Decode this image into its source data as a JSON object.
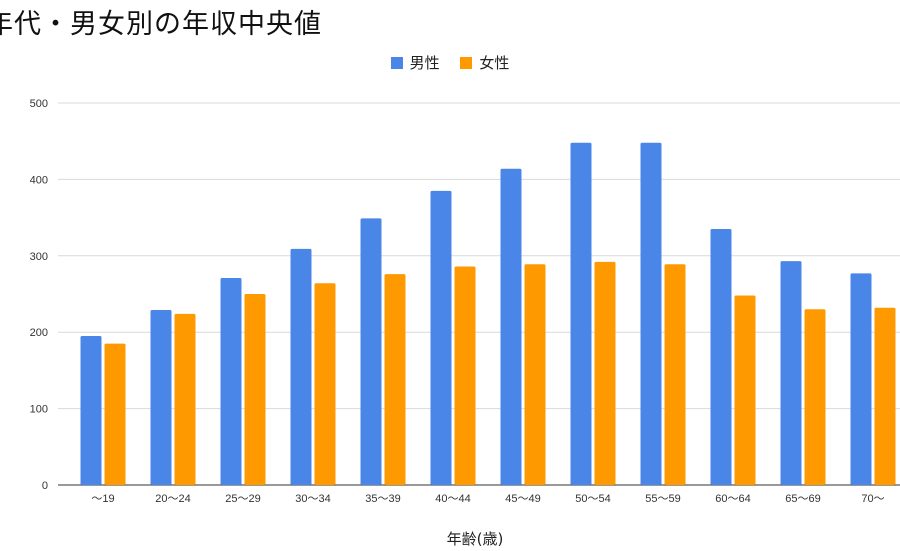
{
  "chart_data": {
    "type": "bar",
    "title": "年代・男女別の年収中央値",
    "xlabel": "年齢(歳)",
    "ylabel": "",
    "ylim": [
      0,
      500
    ],
    "yticks": [
      0,
      100,
      200,
      300,
      400,
      500
    ],
    "grid": true,
    "legend_position": "top-center",
    "categories": [
      "～19",
      "20～24",
      "25～29",
      "30～34",
      "35～39",
      "40～44",
      "45～49",
      "50～54",
      "55～59",
      "60～64",
      "65～69",
      "70～"
    ],
    "series": [
      {
        "name": "男性",
        "color": "#4a86e8",
        "values": [
          195,
          229,
          271,
          309,
          349,
          385,
          414,
          448,
          448,
          335,
          293,
          277
        ]
      },
      {
        "name": "女性",
        "color": "#ff9900",
        "values": [
          185,
          224,
          250,
          264,
          276,
          286,
          289,
          292,
          289,
          248,
          230,
          232
        ]
      }
    ]
  }
}
